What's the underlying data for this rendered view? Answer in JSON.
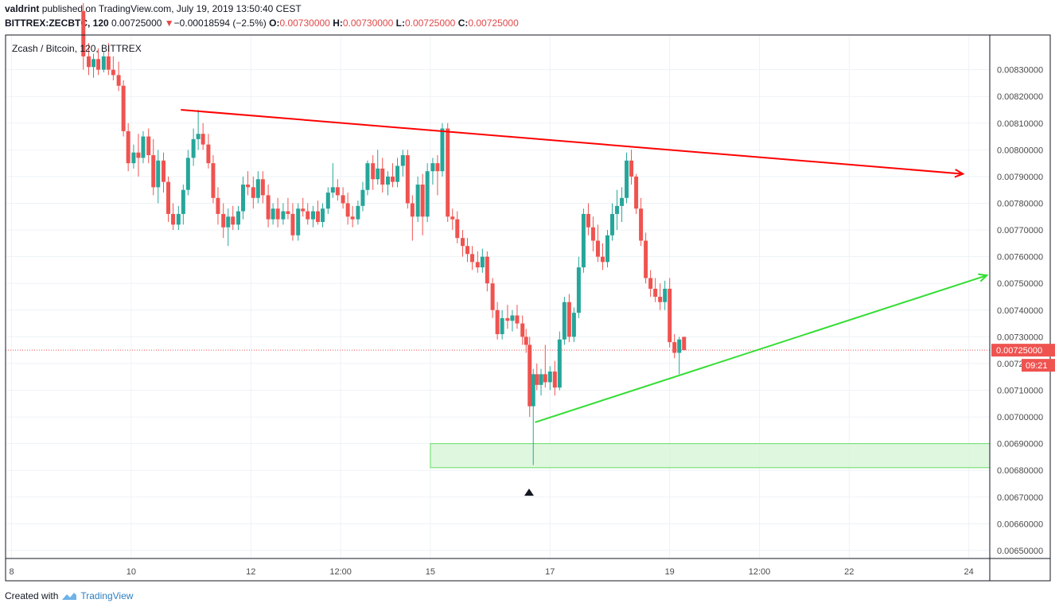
{
  "header": {
    "author": "valdrint",
    "published_text": "published on TradingView.com, July 19, 2019 13:50:40 CEST",
    "symbol": "BITTREX:ZECBTC, 120",
    "last": "0.00725000",
    "change_arrow": "▼",
    "change": "−0.00018594 (−2.5%)",
    "o_label": "O:",
    "o_value": "0.00730000",
    "h_label": "H:",
    "h_value": "0.00730000",
    "l_label": "L:",
    "l_value": "0.00725000",
    "c_label": "C:",
    "c_value": "0.00725000"
  },
  "chart_title": "Zcash / Bitcoin, 120, BITTREX",
  "price_label": "0.00725000",
  "countdown": "09:21",
  "footer": {
    "created_with": "Created with",
    "brand": "TradingView"
  },
  "colors": {
    "up": "#26a69a",
    "down": "#ef5350",
    "resistance": "#ff0000",
    "support": "#33dd33",
    "zone_fill": "#d7f5d7",
    "grid": "#eef2f6"
  },
  "chart_data": {
    "type": "candlestick",
    "title": "Zcash / Bitcoin, 120, BITTREX",
    "timeframe": "120",
    "y_ticks": [
      "0.00830000",
      "0.00820000",
      "0.00810000",
      "0.00800000",
      "0.00790000",
      "0.00780000",
      "0.00770000",
      "0.00760000",
      "0.00750000",
      "0.00740000",
      "0.00730000",
      "0.00720000",
      "0.00710000",
      "0.00700000",
      "0.00690000",
      "0.00680000",
      "0.00670000",
      "0.00660000",
      "0.00650000"
    ],
    "ylim": [
      0.00647,
      0.00843
    ],
    "x_ticks": [
      {
        "label": "8",
        "t": 8.0
      },
      {
        "label": "10",
        "t": 10.0
      },
      {
        "label": "12",
        "t": 12.0
      },
      {
        "label": "12:00",
        "t": 13.5
      },
      {
        "label": "15",
        "t": 15.0
      },
      {
        "label": "17",
        "t": 17.0
      },
      {
        "label": "19",
        "t": 19.0
      },
      {
        "label": "12:00",
        "t": 20.5
      },
      {
        "label": "22",
        "t": 22.0
      },
      {
        "label": "24",
        "t": 24.0
      }
    ],
    "xlim": [
      7.9,
      24.35
    ],
    "last_price": 0.00725,
    "resistance_line": {
      "start": [
        10.83,
        0.00815
      ],
      "end": [
        23.9,
        0.00791
      ]
    },
    "support_line": {
      "start": [
        16.75,
        0.00698
      ],
      "end": [
        24.3,
        0.00753
      ]
    },
    "demand_zone": {
      "t_start": 15.0,
      "t_end": 24.35,
      "low": 0.00681,
      "high": 0.0069
    },
    "marker": {
      "t": 16.65,
      "price": 0.00672
    },
    "candles": [
      {
        "t": 9.2,
        "o": 0.00852,
        "h": 0.00855,
        "l": 0.0083,
        "c": 0.00835
      },
      {
        "t": 9.29,
        "o": 0.00835,
        "h": 0.0084,
        "l": 0.00828,
        "c": 0.00831
      },
      {
        "t": 9.37,
        "o": 0.00831,
        "h": 0.00836,
        "l": 0.00827,
        "c": 0.00834
      },
      {
        "t": 9.45,
        "o": 0.00834,
        "h": 0.00838,
        "l": 0.00828,
        "c": 0.0083
      },
      {
        "t": 9.54,
        "o": 0.0083,
        "h": 0.00837,
        "l": 0.00829,
        "c": 0.00835
      },
      {
        "t": 9.62,
        "o": 0.00835,
        "h": 0.0084,
        "l": 0.00828,
        "c": 0.0083
      },
      {
        "t": 9.7,
        "o": 0.0083,
        "h": 0.00835,
        "l": 0.00826,
        "c": 0.00828
      },
      {
        "t": 9.79,
        "o": 0.00828,
        "h": 0.00833,
        "l": 0.00822,
        "c": 0.00824
      },
      {
        "t": 9.87,
        "o": 0.00824,
        "h": 0.00826,
        "l": 0.00805,
        "c": 0.00807
      },
      {
        "t": 9.95,
        "o": 0.00807,
        "h": 0.0081,
        "l": 0.00792,
        "c": 0.00795
      },
      {
        "t": 10.04,
        "o": 0.00795,
        "h": 0.00802,
        "l": 0.00793,
        "c": 0.00799
      },
      {
        "t": 10.12,
        "o": 0.00799,
        "h": 0.00806,
        "l": 0.0079,
        "c": 0.00797
      },
      {
        "t": 10.2,
        "o": 0.00797,
        "h": 0.00807,
        "l": 0.00795,
        "c": 0.00805
      },
      {
        "t": 10.29,
        "o": 0.00805,
        "h": 0.00808,
        "l": 0.00795,
        "c": 0.00798
      },
      {
        "t": 10.37,
        "o": 0.00798,
        "h": 0.00804,
        "l": 0.00783,
        "c": 0.00786
      },
      {
        "t": 10.45,
        "o": 0.00786,
        "h": 0.008,
        "l": 0.0078,
        "c": 0.00796
      },
      {
        "t": 10.54,
        "o": 0.00796,
        "h": 0.00799,
        "l": 0.00784,
        "c": 0.00788
      },
      {
        "t": 10.62,
        "o": 0.00788,
        "h": 0.0079,
        "l": 0.00773,
        "c": 0.00776
      },
      {
        "t": 10.7,
        "o": 0.00776,
        "h": 0.0078,
        "l": 0.0077,
        "c": 0.00772
      },
      {
        "t": 10.79,
        "o": 0.00772,
        "h": 0.00779,
        "l": 0.0077,
        "c": 0.00776
      },
      {
        "t": 10.87,
        "o": 0.00776,
        "h": 0.00787,
        "l": 0.00772,
        "c": 0.00785
      },
      {
        "t": 10.95,
        "o": 0.00785,
        "h": 0.008,
        "l": 0.00783,
        "c": 0.00797
      },
      {
        "t": 11.04,
        "o": 0.00797,
        "h": 0.00808,
        "l": 0.00794,
        "c": 0.00804
      },
      {
        "t": 11.12,
        "o": 0.00804,
        "h": 0.00815,
        "l": 0.008,
        "c": 0.00806
      },
      {
        "t": 11.2,
        "o": 0.00806,
        "h": 0.0081,
        "l": 0.008,
        "c": 0.00802
      },
      {
        "t": 11.29,
        "o": 0.00802,
        "h": 0.00806,
        "l": 0.00793,
        "c": 0.00795
      },
      {
        "t": 11.37,
        "o": 0.00795,
        "h": 0.00798,
        "l": 0.0078,
        "c": 0.00782
      },
      {
        "t": 11.45,
        "o": 0.00782,
        "h": 0.00786,
        "l": 0.00772,
        "c": 0.00776
      },
      {
        "t": 11.54,
        "o": 0.00776,
        "h": 0.0078,
        "l": 0.00767,
        "c": 0.00771
      },
      {
        "t": 11.62,
        "o": 0.00771,
        "h": 0.00778,
        "l": 0.00764,
        "c": 0.00775
      },
      {
        "t": 11.7,
        "o": 0.00775,
        "h": 0.00779,
        "l": 0.0077,
        "c": 0.00772
      },
      {
        "t": 11.79,
        "o": 0.00772,
        "h": 0.00779,
        "l": 0.0077,
        "c": 0.00777
      },
      {
        "t": 11.87,
        "o": 0.00777,
        "h": 0.0079,
        "l": 0.00774,
        "c": 0.00787
      },
      {
        "t": 11.95,
        "o": 0.00787,
        "h": 0.00792,
        "l": 0.00783,
        "c": 0.00786
      },
      {
        "t": 12.04,
        "o": 0.00786,
        "h": 0.0079,
        "l": 0.00778,
        "c": 0.00782
      },
      {
        "t": 12.12,
        "o": 0.00782,
        "h": 0.00792,
        "l": 0.0078,
        "c": 0.00789
      },
      {
        "t": 12.2,
        "o": 0.00789,
        "h": 0.00792,
        "l": 0.0078,
        "c": 0.00783
      },
      {
        "t": 12.29,
        "o": 0.00783,
        "h": 0.00787,
        "l": 0.00771,
        "c": 0.00774
      },
      {
        "t": 12.37,
        "o": 0.00774,
        "h": 0.0078,
        "l": 0.00772,
        "c": 0.00778
      },
      {
        "t": 12.45,
        "o": 0.00778,
        "h": 0.00782,
        "l": 0.00771,
        "c": 0.00774
      },
      {
        "t": 12.54,
        "o": 0.00774,
        "h": 0.0078,
        "l": 0.00772,
        "c": 0.00777
      },
      {
        "t": 12.62,
        "o": 0.00777,
        "h": 0.00782,
        "l": 0.00774,
        "c": 0.00776
      },
      {
        "t": 12.7,
        "o": 0.00776,
        "h": 0.0078,
        "l": 0.00766,
        "c": 0.00768
      },
      {
        "t": 12.79,
        "o": 0.00768,
        "h": 0.0078,
        "l": 0.00766,
        "c": 0.00778
      },
      {
        "t": 12.87,
        "o": 0.00778,
        "h": 0.00782,
        "l": 0.00775,
        "c": 0.00777
      },
      {
        "t": 12.95,
        "o": 0.00777,
        "h": 0.0078,
        "l": 0.00772,
        "c": 0.00774
      },
      {
        "t": 13.04,
        "o": 0.00774,
        "h": 0.00779,
        "l": 0.00771,
        "c": 0.00777
      },
      {
        "t": 13.12,
        "o": 0.00777,
        "h": 0.00781,
        "l": 0.00772,
        "c": 0.00773
      },
      {
        "t": 13.2,
        "o": 0.00773,
        "h": 0.0078,
        "l": 0.00771,
        "c": 0.00778
      },
      {
        "t": 13.29,
        "o": 0.00778,
        "h": 0.00786,
        "l": 0.00776,
        "c": 0.00784
      },
      {
        "t": 13.37,
        "o": 0.00784,
        "h": 0.00795,
        "l": 0.00782,
        "c": 0.00786
      },
      {
        "t": 13.45,
        "o": 0.00786,
        "h": 0.00789,
        "l": 0.00781,
        "c": 0.00783
      },
      {
        "t": 13.54,
        "o": 0.00783,
        "h": 0.00786,
        "l": 0.00778,
        "c": 0.0078
      },
      {
        "t": 13.62,
        "o": 0.0078,
        "h": 0.00784,
        "l": 0.00772,
        "c": 0.00775
      },
      {
        "t": 13.7,
        "o": 0.00775,
        "h": 0.00779,
        "l": 0.00771,
        "c": 0.00774
      },
      {
        "t": 13.79,
        "o": 0.00774,
        "h": 0.00781,
        "l": 0.00772,
        "c": 0.00779
      },
      {
        "t": 13.87,
        "o": 0.00779,
        "h": 0.00788,
        "l": 0.00777,
        "c": 0.00785
      },
      {
        "t": 13.95,
        "o": 0.00785,
        "h": 0.00796,
        "l": 0.00783,
        "c": 0.00795
      },
      {
        "t": 14.04,
        "o": 0.00795,
        "h": 0.00798,
        "l": 0.00785,
        "c": 0.00789
      },
      {
        "t": 14.12,
        "o": 0.00789,
        "h": 0.008,
        "l": 0.00787,
        "c": 0.00793
      },
      {
        "t": 14.2,
        "o": 0.00793,
        "h": 0.00797,
        "l": 0.00784,
        "c": 0.00787
      },
      {
        "t": 14.29,
        "o": 0.00787,
        "h": 0.00792,
        "l": 0.00783,
        "c": 0.0079
      },
      {
        "t": 14.37,
        "o": 0.0079,
        "h": 0.00795,
        "l": 0.00786,
        "c": 0.00788
      },
      {
        "t": 14.45,
        "o": 0.00788,
        "h": 0.00797,
        "l": 0.00786,
        "c": 0.00794
      },
      {
        "t": 14.54,
        "o": 0.00794,
        "h": 0.008,
        "l": 0.0079,
        "c": 0.00798
      },
      {
        "t": 14.62,
        "o": 0.00798,
        "h": 0.008,
        "l": 0.00778,
        "c": 0.0078
      },
      {
        "t": 14.7,
        "o": 0.0078,
        "h": 0.00783,
        "l": 0.00766,
        "c": 0.00775
      },
      {
        "t": 14.79,
        "o": 0.00775,
        "h": 0.0079,
        "l": 0.00773,
        "c": 0.00787
      },
      {
        "t": 14.87,
        "o": 0.00787,
        "h": 0.00791,
        "l": 0.00768,
        "c": 0.00775
      },
      {
        "t": 14.95,
        "o": 0.00775,
        "h": 0.00795,
        "l": 0.00773,
        "c": 0.00792
      },
      {
        "t": 15.04,
        "o": 0.00792,
        "h": 0.00797,
        "l": 0.00787,
        "c": 0.00795
      },
      {
        "t": 15.12,
        "o": 0.00795,
        "h": 0.00798,
        "l": 0.00783,
        "c": 0.00792
      },
      {
        "t": 15.2,
        "o": 0.00792,
        "h": 0.0081,
        "l": 0.0079,
        "c": 0.00808
      },
      {
        "t": 15.29,
        "o": 0.00808,
        "h": 0.0081,
        "l": 0.00773,
        "c": 0.00775
      },
      {
        "t": 15.37,
        "o": 0.00775,
        "h": 0.00778,
        "l": 0.0077,
        "c": 0.00774
      },
      {
        "t": 15.45,
        "o": 0.00774,
        "h": 0.00777,
        "l": 0.00765,
        "c": 0.00767
      },
      {
        "t": 15.54,
        "o": 0.00767,
        "h": 0.0077,
        "l": 0.0076,
        "c": 0.00764
      },
      {
        "t": 15.62,
        "o": 0.00764,
        "h": 0.00767,
        "l": 0.00758,
        "c": 0.00761
      },
      {
        "t": 15.7,
        "o": 0.00761,
        "h": 0.00764,
        "l": 0.00755,
        "c": 0.00758
      },
      {
        "t": 15.79,
        "o": 0.00758,
        "h": 0.00762,
        "l": 0.00754,
        "c": 0.00756
      },
      {
        "t": 15.87,
        "o": 0.00756,
        "h": 0.00763,
        "l": 0.00754,
        "c": 0.0076
      },
      {
        "t": 15.95,
        "o": 0.0076,
        "h": 0.00762,
        "l": 0.00747,
        "c": 0.0075
      },
      {
        "t": 16.04,
        "o": 0.0075,
        "h": 0.00752,
        "l": 0.00737,
        "c": 0.0074
      },
      {
        "t": 16.12,
        "o": 0.0074,
        "h": 0.00743,
        "l": 0.00729,
        "c": 0.00731
      },
      {
        "t": 16.2,
        "o": 0.00731,
        "h": 0.0074,
        "l": 0.00729,
        "c": 0.00737
      },
      {
        "t": 16.29,
        "o": 0.00737,
        "h": 0.00742,
        "l": 0.00733,
        "c": 0.00736
      },
      {
        "t": 16.37,
        "o": 0.00736,
        "h": 0.0074,
        "l": 0.00732,
        "c": 0.00738
      },
      {
        "t": 16.45,
        "o": 0.00738,
        "h": 0.00742,
        "l": 0.00733,
        "c": 0.00735
      },
      {
        "t": 16.54,
        "o": 0.00735,
        "h": 0.00738,
        "l": 0.00727,
        "c": 0.0073
      },
      {
        "t": 16.6,
        "o": 0.0073,
        "h": 0.00733,
        "l": 0.00724,
        "c": 0.00727
      },
      {
        "t": 16.66,
        "o": 0.00727,
        "h": 0.0073,
        "l": 0.007,
        "c": 0.00704
      },
      {
        "t": 16.72,
        "o": 0.00704,
        "h": 0.00718,
        "l": 0.00682,
        "c": 0.00716
      },
      {
        "t": 16.78,
        "o": 0.00716,
        "h": 0.0072,
        "l": 0.0071,
        "c": 0.00712
      },
      {
        "t": 16.85,
        "o": 0.00712,
        "h": 0.00718,
        "l": 0.00708,
        "c": 0.00716
      },
      {
        "t": 16.92,
        "o": 0.00716,
        "h": 0.00727,
        "l": 0.00711,
        "c": 0.00713
      },
      {
        "t": 17.0,
        "o": 0.00713,
        "h": 0.00719,
        "l": 0.0071,
        "c": 0.00717
      },
      {
        "t": 17.08,
        "o": 0.00717,
        "h": 0.00721,
        "l": 0.00708,
        "c": 0.00711
      },
      {
        "t": 17.16,
        "o": 0.00711,
        "h": 0.00732,
        "l": 0.0071,
        "c": 0.00729
      },
      {
        "t": 17.24,
        "o": 0.00729,
        "h": 0.00745,
        "l": 0.00727,
        "c": 0.00743
      },
      {
        "t": 17.32,
        "o": 0.00743,
        "h": 0.00746,
        "l": 0.00728,
        "c": 0.0073
      },
      {
        "t": 17.4,
        "o": 0.0073,
        "h": 0.00741,
        "l": 0.00728,
        "c": 0.00739
      },
      {
        "t": 17.48,
        "o": 0.00739,
        "h": 0.0076,
        "l": 0.00737,
        "c": 0.00756
      },
      {
        "t": 17.56,
        "o": 0.00756,
        "h": 0.00778,
        "l": 0.00754,
        "c": 0.00776
      },
      {
        "t": 17.64,
        "o": 0.00776,
        "h": 0.0078,
        "l": 0.00768,
        "c": 0.00771
      },
      {
        "t": 17.72,
        "o": 0.00771,
        "h": 0.00775,
        "l": 0.00762,
        "c": 0.00766
      },
      {
        "t": 17.8,
        "o": 0.00766,
        "h": 0.00772,
        "l": 0.00758,
        "c": 0.0076
      },
      {
        "t": 17.88,
        "o": 0.0076,
        "h": 0.00765,
        "l": 0.00755,
        "c": 0.00758
      },
      {
        "t": 17.96,
        "o": 0.00758,
        "h": 0.0077,
        "l": 0.00756,
        "c": 0.00768
      },
      {
        "t": 18.04,
        "o": 0.00768,
        "h": 0.0078,
        "l": 0.00766,
        "c": 0.00776
      },
      {
        "t": 18.12,
        "o": 0.00776,
        "h": 0.00785,
        "l": 0.0077,
        "c": 0.00779
      },
      {
        "t": 18.2,
        "o": 0.00779,
        "h": 0.00786,
        "l": 0.00773,
        "c": 0.00782
      },
      {
        "t": 18.28,
        "o": 0.00782,
        "h": 0.00799,
        "l": 0.0078,
        "c": 0.00796
      },
      {
        "t": 18.36,
        "o": 0.00796,
        "h": 0.008,
        "l": 0.00787,
        "c": 0.0079
      },
      {
        "t": 18.44,
        "o": 0.0079,
        "h": 0.00791,
        "l": 0.00776,
        "c": 0.00778
      },
      {
        "t": 18.52,
        "o": 0.00778,
        "h": 0.00782,
        "l": 0.00764,
        "c": 0.00766
      },
      {
        "t": 18.6,
        "o": 0.00766,
        "h": 0.00769,
        "l": 0.0075,
        "c": 0.00752
      },
      {
        "t": 18.68,
        "o": 0.00752,
        "h": 0.00755,
        "l": 0.00745,
        "c": 0.00748
      },
      {
        "t": 18.76,
        "o": 0.00748,
        "h": 0.00752,
        "l": 0.00743,
        "c": 0.00745
      },
      {
        "t": 18.84,
        "o": 0.00745,
        "h": 0.0075,
        "l": 0.0074,
        "c": 0.00743
      },
      {
        "t": 18.92,
        "o": 0.00743,
        "h": 0.00751,
        "l": 0.0074,
        "c": 0.00748
      },
      {
        "t": 19.0,
        "o": 0.00748,
        "h": 0.00752,
        "l": 0.00726,
        "c": 0.00728
      },
      {
        "t": 19.08,
        "o": 0.00728,
        "h": 0.00731,
        "l": 0.00722,
        "c": 0.00724
      },
      {
        "t": 19.16,
        "o": 0.00724,
        "h": 0.0073,
        "l": 0.00716,
        "c": 0.00729
      },
      {
        "t": 19.24,
        "o": 0.0073,
        "h": 0.0073,
        "l": 0.00725,
        "c": 0.00725
      }
    ]
  }
}
